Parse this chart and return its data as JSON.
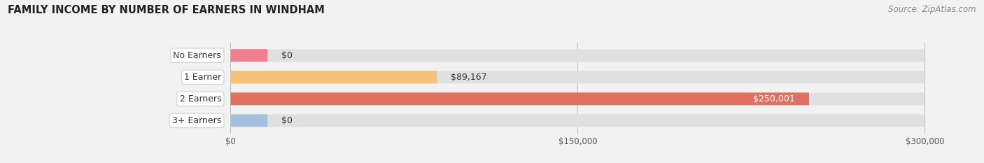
{
  "title": "FAMILY INCOME BY NUMBER OF EARNERS IN WINDHAM",
  "source": "Source: ZipAtlas.com",
  "categories": [
    "No Earners",
    "1 Earner",
    "2 Earners",
    "3+ Earners"
  ],
  "values": [
    0,
    89167,
    250001,
    0
  ],
  "bar_colors": [
    "#f08090",
    "#f5c07a",
    "#e07060",
    "#a8c0e0"
  ],
  "label_colors": [
    "#333333",
    "#333333",
    "#ffffff",
    "#333333"
  ],
  "value_labels": [
    "$0",
    "$89,167",
    "$250,001",
    "$0"
  ],
  "xlim": [
    0,
    300000
  ],
  "xticks": [
    0,
    150000,
    300000
  ],
  "xtick_labels": [
    "$0",
    "$150,000",
    "$300,000"
  ],
  "background_color": "#f2f2f2",
  "bar_bg_color": "#e0e0e0",
  "title_fontsize": 10.5,
  "source_fontsize": 8.5,
  "label_fontsize": 9,
  "value_fontsize": 9,
  "bar_height": 0.58,
  "fig_width": 14.06,
  "fig_height": 2.33
}
